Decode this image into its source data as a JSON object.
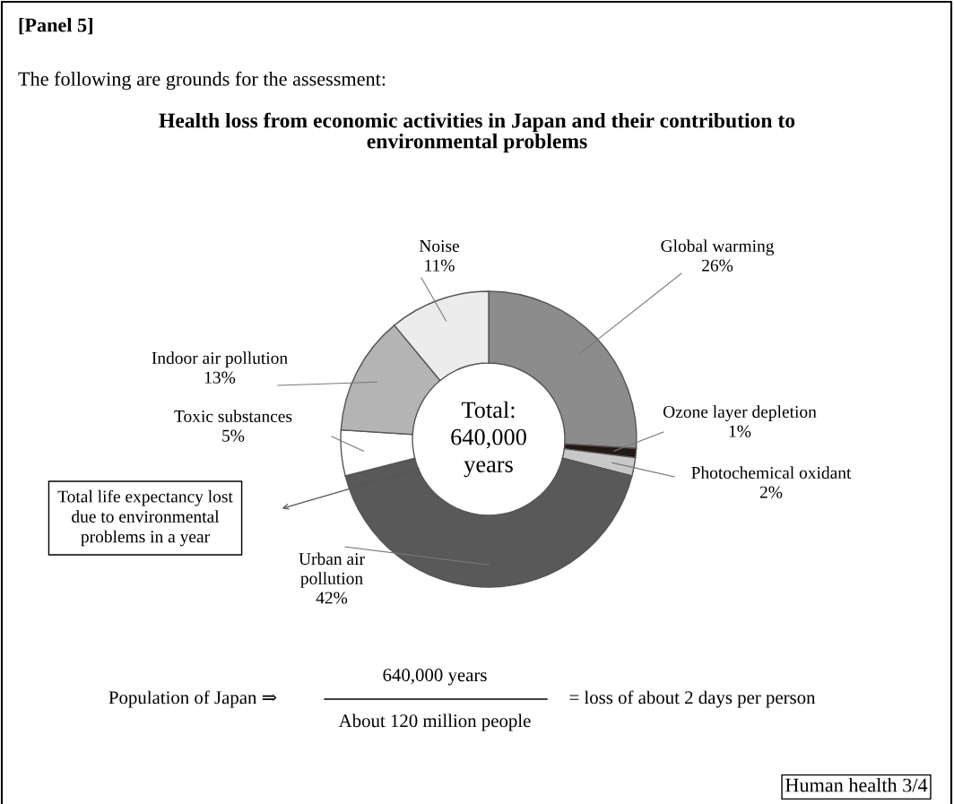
{
  "chart_data": {
    "type": "donut",
    "title": "Health loss from economic activities in Japan and their contribution to\nenvironmental problems",
    "categories": [
      "Global warming",
      "Ozone layer depletion",
      "Photochemical oxidant",
      "Urban air\npollution",
      "Toxic substances",
      "Indoor air pollution",
      "Noise"
    ],
    "values": [
      26,
      1,
      2,
      42,
      5,
      13,
      11
    ],
    "value_labels": [
      "26%",
      "1%",
      "2%",
      "42%",
      "5%",
      "13%",
      "11%"
    ],
    "colors": [
      "#8c8c8c",
      "#231815",
      "#c8c8c8",
      "#595959",
      "#ffffff",
      "#b4b4b4",
      "#ececec"
    ],
    "annotations": [
      "[Panel 5]",
      "The following are grounds for the assessment:",
      "Total:\n640,000\nyears",
      "Total life expectancy lost\ndue to environmental\nproblems in a year",
      "Population of Japan ⇒",
      "640,000 years",
      "About 120 million people",
      "= loss of about 2 days per person",
      "Human health 3/4"
    ]
  }
}
